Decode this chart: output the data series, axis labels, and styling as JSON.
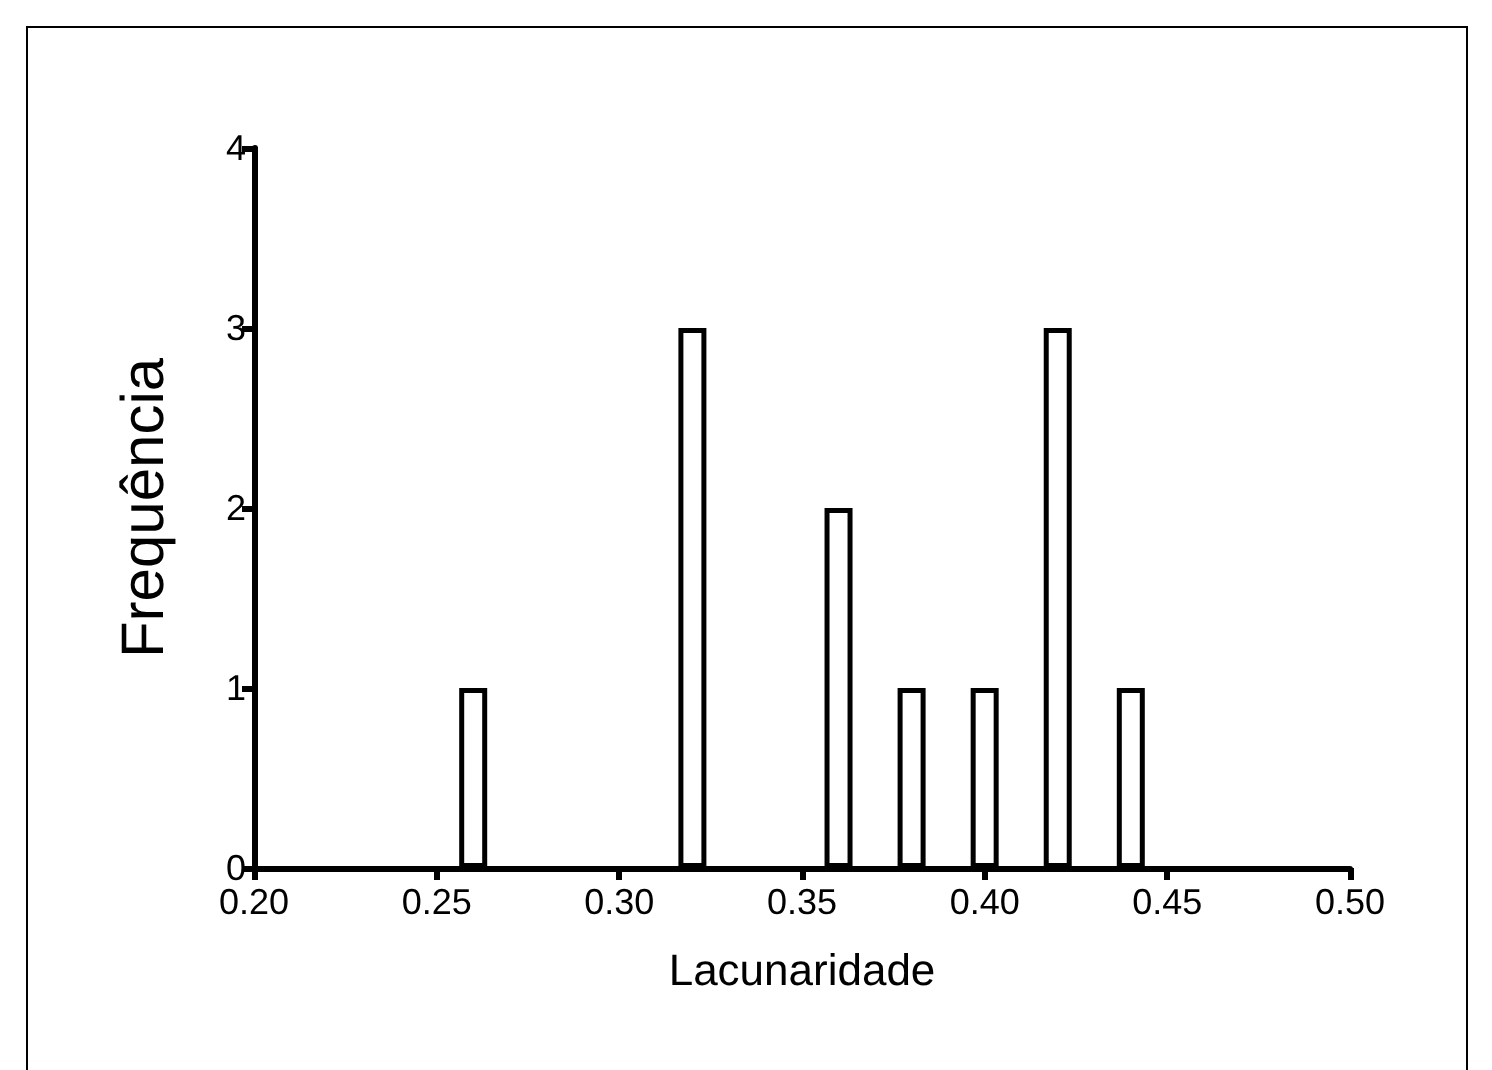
{
  "chart_data": {
    "type": "bar",
    "xlabel": "Lacunaridade",
    "ylabel": "Frequência",
    "x": [
      0.26,
      0.32,
      0.36,
      0.38,
      0.4,
      0.42,
      0.44
    ],
    "values": [
      1,
      3,
      2,
      1,
      1,
      3,
      1
    ],
    "color": "#ffffff",
    "xlim": [
      0.2,
      0.5
    ],
    "xticks": [
      {
        "value": 0.2,
        "label": "0.20"
      },
      {
        "value": 0.25,
        "label": "0.25"
      },
      {
        "value": 0.3,
        "label": "0.30"
      },
      {
        "value": 0.35,
        "label": "0.35"
      },
      {
        "value": 0.4,
        "label": "0.40"
      },
      {
        "value": 0.45,
        "label": "0.45"
      },
      {
        "value": 0.5,
        "label": "0.50"
      }
    ],
    "ylim": [
      0,
      4
    ],
    "yticks": [
      0,
      1,
      2,
      3,
      4
    ],
    "grid": false
  }
}
